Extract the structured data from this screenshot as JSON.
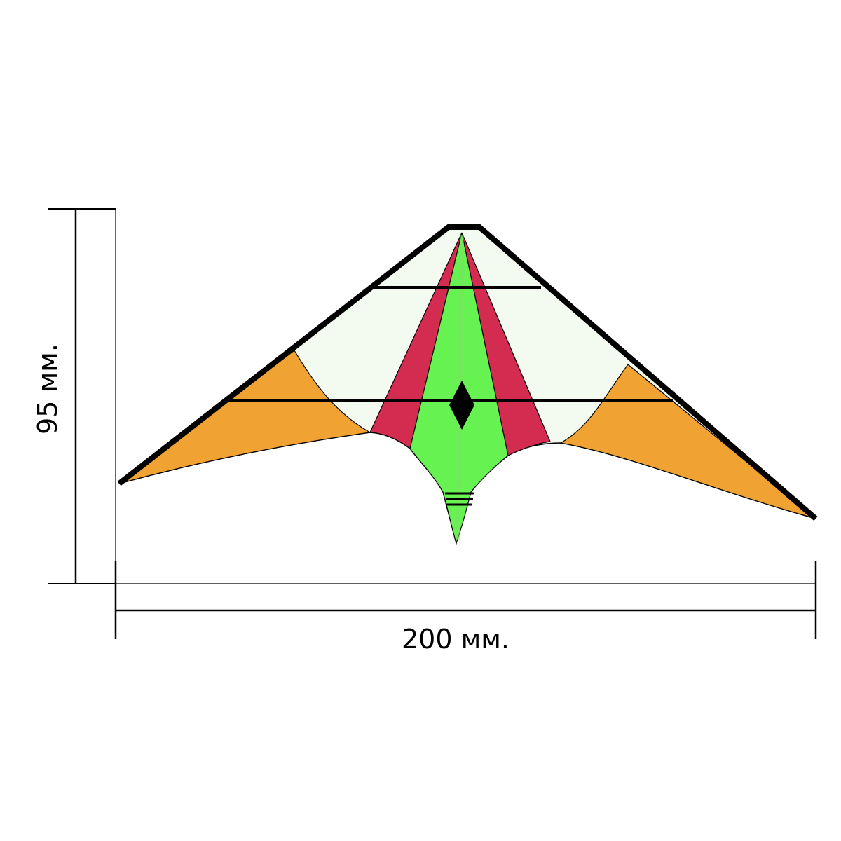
{
  "dimensions": {
    "width_label": "200 мм.",
    "height_label": "95 мм.",
    "width_mm": 200,
    "height_mm": 95
  },
  "colors": {
    "background": "#ffffff",
    "sail_white": "#f3fbf1",
    "wingtip_orange": "#f0a233",
    "stripe_red": "#d42c50",
    "center_green": "#66f250",
    "frame_black": "#000000",
    "dimension_line": "#000000"
  },
  "parts": [
    {
      "name": "sail",
      "color_key": "sail_white"
    },
    {
      "name": "left-wingtip",
      "color_key": "wingtip_orange"
    },
    {
      "name": "right-wingtip",
      "color_key": "wingtip_orange"
    },
    {
      "name": "left-red-stripe",
      "color_key": "stripe_red"
    },
    {
      "name": "right-red-stripe",
      "color_key": "stripe_red"
    },
    {
      "name": "center-panel",
      "color_key": "center_green"
    },
    {
      "name": "center-diamond",
      "color_key": "frame_black"
    }
  ]
}
